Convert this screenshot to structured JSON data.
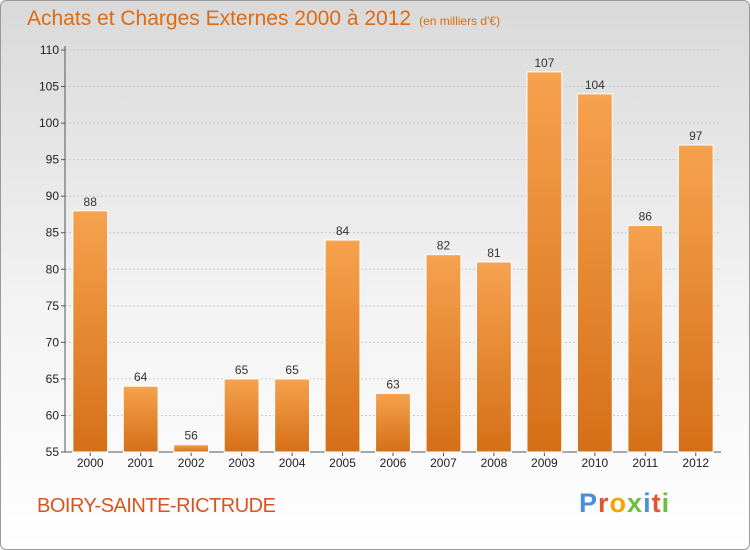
{
  "header": {
    "title": "Achats et Charges Externes 2000 à 2012",
    "subtitle": "(en milliers d'€)"
  },
  "commune": "BOIRY-SAINTE-RICTRUDE",
  "logo": {
    "text": "Proxiti"
  },
  "colors": {
    "bar_top": "#f6a24e",
    "bar_bottom": "#d56f17",
    "title": "#e06a12"
  },
  "chart_data": {
    "type": "bar",
    "title": "Achats et Charges Externes 2000 à 2012",
    "subtitle": "(en milliers d'€)",
    "categories": [
      "2000",
      "2001",
      "2002",
      "2003",
      "2004",
      "2005",
      "2006",
      "2007",
      "2008",
      "2009",
      "2010",
      "2011",
      "2012"
    ],
    "values": [
      88,
      64,
      56,
      65,
      65,
      84,
      63,
      82,
      81,
      107,
      104,
      86,
      97
    ],
    "ylim": [
      55,
      110
    ],
    "yticks": [
      55,
      60,
      65,
      70,
      75,
      80,
      85,
      90,
      95,
      100,
      105,
      110
    ],
    "grid": true,
    "legend": "none"
  }
}
